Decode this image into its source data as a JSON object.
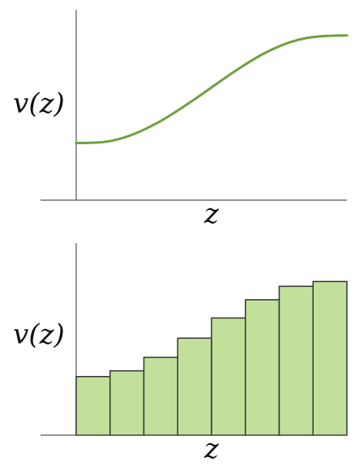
{
  "colors": {
    "curve": "#6fa03d",
    "bar_fill": "#c2e09a",
    "bar_stroke": "#333333",
    "axis": "#555555"
  },
  "chart_data": [
    {
      "type": "line",
      "xlabel": "z",
      "ylabel": "v(z)",
      "xlim": [
        0,
        1
      ],
      "ylim": [
        0,
        1
      ],
      "grid": false,
      "x": [
        0,
        0.05,
        0.1,
        0.15,
        0.2,
        0.25,
        0.3,
        0.35,
        0.4,
        0.45,
        0.5,
        0.55,
        0.6,
        0.65,
        0.7,
        0.75,
        0.8,
        0.85,
        0.9,
        0.95,
        1
      ],
      "y": [
        0.3,
        0.301,
        0.305,
        0.318,
        0.34,
        0.37,
        0.406,
        0.448,
        0.494,
        0.542,
        0.592,
        0.642,
        0.69,
        0.735,
        0.775,
        0.808,
        0.834,
        0.851,
        0.86,
        0.864,
        0.865
      ]
    },
    {
      "type": "bar",
      "xlabel": "z",
      "ylabel": "v(z)",
      "ylim": [
        0,
        1
      ],
      "grid": false,
      "values": [
        0.305,
        0.335,
        0.405,
        0.505,
        0.61,
        0.705,
        0.775,
        0.8
      ]
    }
  ]
}
